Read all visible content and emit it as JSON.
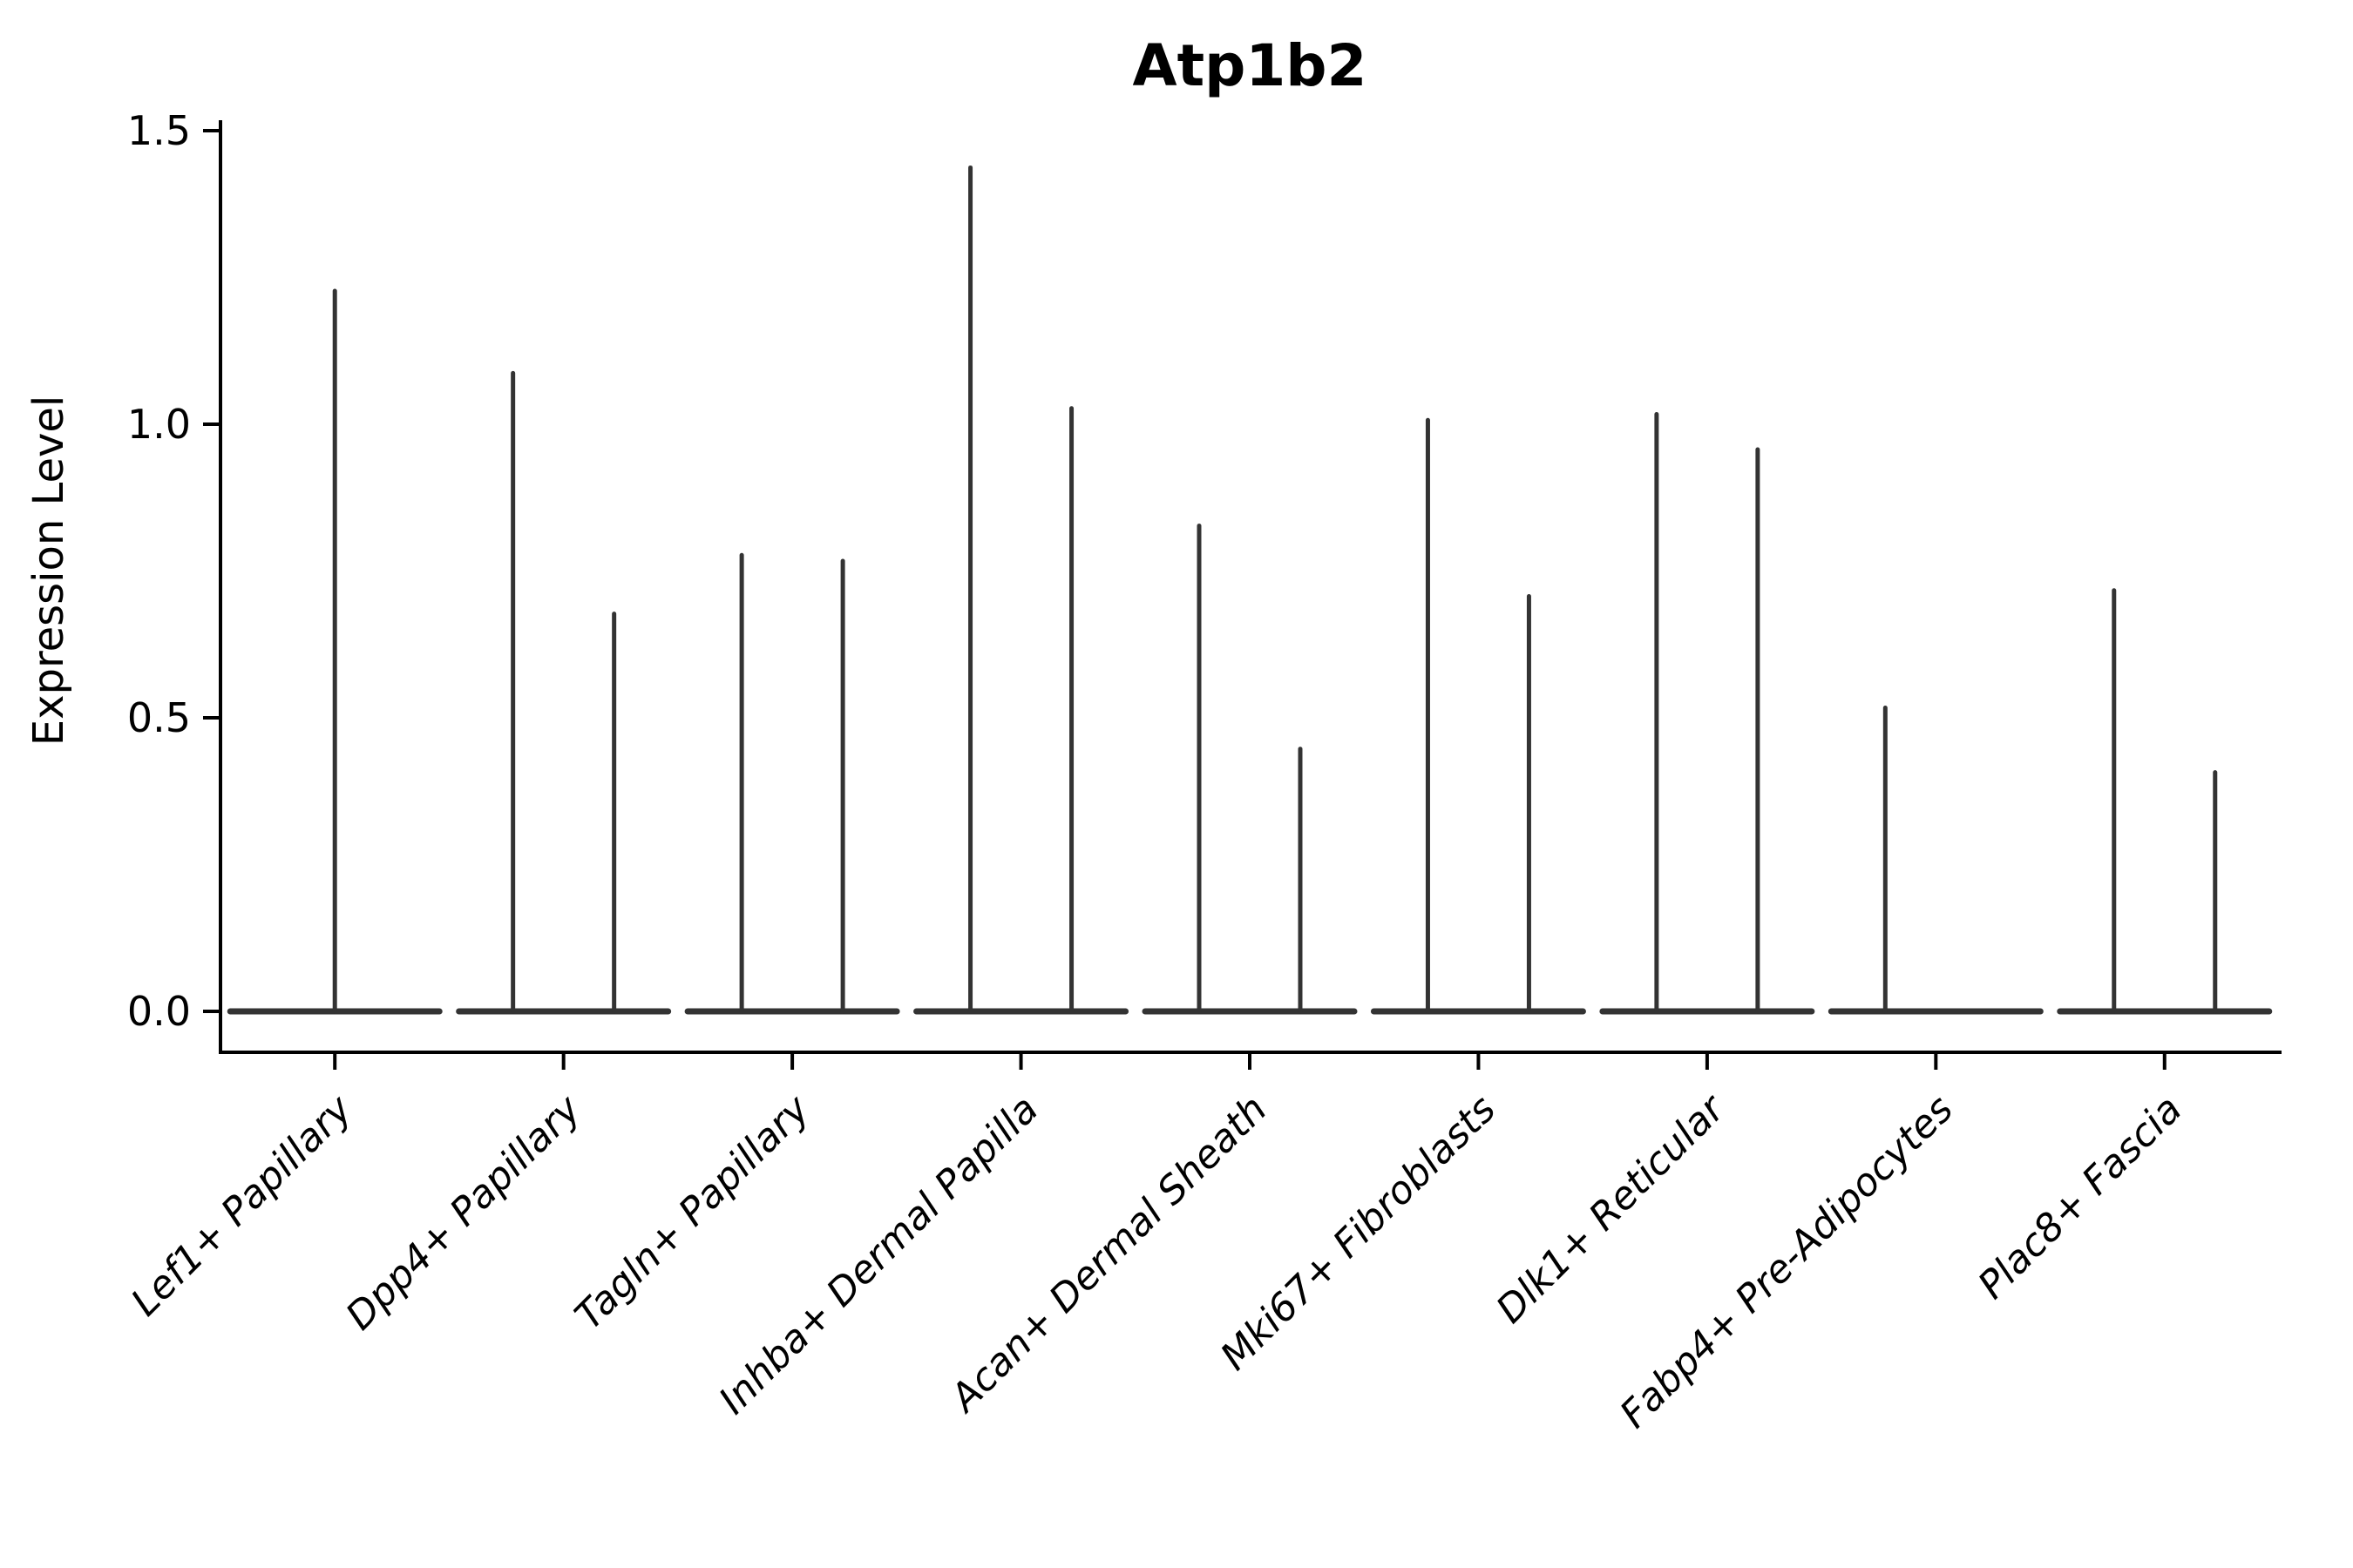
{
  "chart_data": {
    "type": "violin",
    "title": "Atp1b2",
    "xlabel": "",
    "ylabel": "Expression Level",
    "ylim": [
      0.0,
      1.5
    ],
    "yticks": [
      0.0,
      0.5,
      1.0,
      1.5
    ],
    "ytick_labels": [
      "0.0",
      "0.5",
      "1.0",
      "1.5"
    ],
    "grid": false,
    "legend_position": "none",
    "x_tick_rotation_deg": 45,
    "violin_style": "flat baseline at 0 with thin density spikes up to the category maximum",
    "colors": {
      "violin": "#333333",
      "axis": "#000000",
      "text": "#000000",
      "background": "#ffffff"
    },
    "categories": [
      "Lef1+ Papillary",
      "Dpp4+ Papillary",
      "Tagln+ Papillary",
      "Inhba+ Dermal Papilla",
      "Acan+ Dermal Sheath",
      "Mki67+ Fibroblasts",
      "Dlk1+ Reticular",
      "Fabp4+ Pre-Adipocytes",
      "Plac8+ Fascia"
    ],
    "series": [
      {
        "category": "Lef1+ Papillary",
        "spikes": [
          {
            "slot": 0,
            "value": 1.23
          }
        ]
      },
      {
        "category": "Dpp4+ Papillary",
        "spikes": [
          {
            "slot": -1,
            "value": 1.09
          },
          {
            "slot": 1,
            "value": 0.68
          }
        ]
      },
      {
        "category": "Tagln+ Papillary",
        "spikes": [
          {
            "slot": -1,
            "value": 0.78
          },
          {
            "slot": 1,
            "value": 0.77
          }
        ]
      },
      {
        "category": "Inhba+ Dermal Papilla",
        "spikes": [
          {
            "slot": -1,
            "value": 1.44
          },
          {
            "slot": 1,
            "value": 1.03
          }
        ]
      },
      {
        "category": "Acan+ Dermal Sheath",
        "spikes": [
          {
            "slot": -1,
            "value": 0.83
          },
          {
            "slot": 1,
            "value": 0.45
          }
        ]
      },
      {
        "category": "Mki67+ Fibroblasts",
        "spikes": [
          {
            "slot": -1,
            "value": 1.01
          },
          {
            "slot": 1,
            "value": 0.71
          }
        ]
      },
      {
        "category": "Dlk1+ Reticular",
        "spikes": [
          {
            "slot": -1,
            "value": 1.02
          },
          {
            "slot": 1,
            "value": 0.96
          }
        ]
      },
      {
        "category": "Fabp4+ Pre-Adipocytes",
        "spikes": [
          {
            "slot": -1,
            "value": 0.52
          }
        ]
      },
      {
        "category": "Plac8+ Fascia",
        "spikes": [
          {
            "slot": -1,
            "value": 0.72
          },
          {
            "slot": 1,
            "value": 0.41
          }
        ]
      }
    ]
  }
}
